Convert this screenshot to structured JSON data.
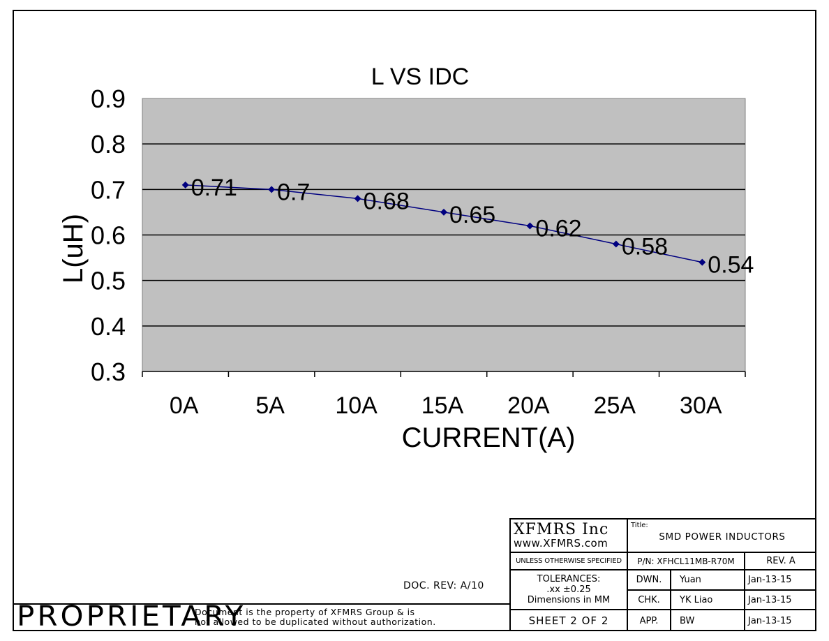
{
  "chart_data": {
    "type": "line",
    "title": "L VS IDC",
    "xlabel": "CURRENT(A)",
    "ylabel": "L(uH)",
    "categories": [
      "0A",
      "5A",
      "10A",
      "15A",
      "20A",
      "25A",
      "30A"
    ],
    "values": [
      0.71,
      0.7,
      0.68,
      0.65,
      0.62,
      0.58,
      0.54
    ],
    "data_labels": [
      "0.71",
      "0.7",
      "0.68",
      "0.65",
      "0.62",
      "0.58",
      "0.54"
    ],
    "y_ticks": [
      "0.9",
      "0.8",
      "0.7",
      "0.6",
      "0.5",
      "0.4",
      "0.3"
    ],
    "ylim": [
      0.3,
      0.9
    ],
    "grid": true,
    "legend": "none",
    "plot_background": "#c0c0c0",
    "line_color": "#000080"
  },
  "title_block": {
    "company": "XFMRS Inc",
    "website": "www.XFMRS.com",
    "title_label": "Title:",
    "title": "SMD POWER INDUCTORS",
    "unless_specified": "UNLESS OTHERWISE SPECIFIED",
    "part_number": "P/N: XFHCL11MB-R70M",
    "revision": "REV. A",
    "tolerances_label": "TOLERANCES:",
    "tolerances_value": ".xx ±0.25",
    "dimensions": "Dimensions in MM",
    "sheet": "SHEET  2  OF  2",
    "rows": [
      {
        "role": "DWN.",
        "name": "Yuan",
        "date": "Jan-13-15"
      },
      {
        "role": "CHK.",
        "name": "YK Liao",
        "date": "Jan-13-15"
      },
      {
        "role": "APP.",
        "name": "BW",
        "date": "Jan-13-15"
      }
    ]
  },
  "doc_rev": "DOC. REV: A/10",
  "proprietary": {
    "label": "PROPRIETARY",
    "notice_line1": "Document is the property of XFMRS Group & is",
    "notice_line2": "not allowed to be duplicated without authorization."
  }
}
